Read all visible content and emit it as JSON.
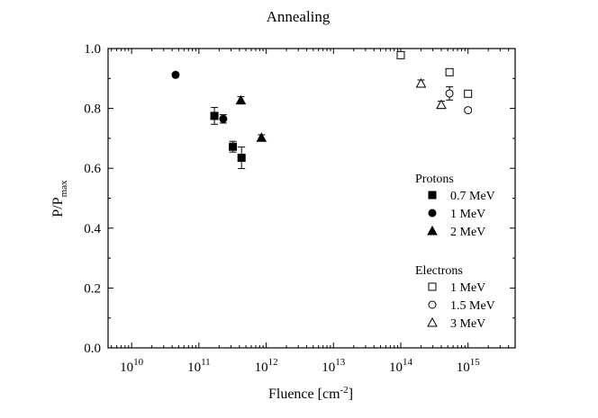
{
  "chart_data": {
    "type": "scatter",
    "title": "Annealing",
    "xlabel": {
      "base": "Fluence [cm",
      "sup": "-2",
      "close": "]"
    },
    "ylabel": {
      "base": "P/P",
      "sub": "max"
    },
    "xscale": "log",
    "xlim_exp": [
      9.65,
      15.7
    ],
    "ylim": [
      0.0,
      1.0
    ],
    "x_ticks": [
      {
        "base": "10",
        "exp": "10",
        "value_exp": 10
      },
      {
        "base": "10",
        "exp": "11",
        "value_exp": 11
      },
      {
        "base": "10",
        "exp": "12",
        "value_exp": 12
      },
      {
        "base": "10",
        "exp": "13",
        "value_exp": 13
      },
      {
        "base": "10",
        "exp": "14",
        "value_exp": 14
      },
      {
        "base": "10",
        "exp": "15",
        "value_exp": 15
      }
    ],
    "y_ticks": [
      {
        "value": 0.0,
        "label": "0.0"
      },
      {
        "value": 0.2,
        "label": "0.2"
      },
      {
        "value": 0.4,
        "label": "0.4"
      },
      {
        "value": 0.6,
        "label": "0.6"
      },
      {
        "value": 0.8,
        "label": "0.8"
      },
      {
        "value": 1.0,
        "label": "1.0"
      }
    ],
    "legend": {
      "placement": "right",
      "groups": [
        {
          "title": "Protons",
          "entries": [
            {
              "label": "0.7 MeV",
              "marker": "square",
              "filled": true
            },
            {
              "label": "1 MeV",
              "marker": "circle",
              "filled": true
            },
            {
              "label": "2 MeV",
              "marker": "triangle",
              "filled": true
            }
          ]
        },
        {
          "title": "Electrons",
          "entries": [
            {
              "label": "1 MeV",
              "marker": "square",
              "filled": false
            },
            {
              "label": "1.5 MeV",
              "marker": "circle",
              "filled": false
            },
            {
              "label": "3 MeV",
              "marker": "triangle",
              "filled": false
            }
          ]
        }
      ]
    },
    "series": [
      {
        "name": "Protons 0.7 MeV",
        "marker": "square",
        "filled": true,
        "points": [
          {
            "x": 170000000000.0,
            "y": 0.775,
            "err": 0.028
          },
          {
            "x": 320000000000.0,
            "y": 0.672,
            "err": 0.018
          },
          {
            "x": 430000000000.0,
            "y": 0.635,
            "err": 0.036
          }
        ]
      },
      {
        "name": "Protons 1 MeV",
        "marker": "circle",
        "filled": true,
        "points": [
          {
            "x": 45000000000.0,
            "y": 0.912,
            "err": 0
          },
          {
            "x": 230000000000.0,
            "y": 0.765,
            "err": 0.014
          }
        ]
      },
      {
        "name": "Protons 2 MeV",
        "marker": "triangle",
        "filled": true,
        "points": [
          {
            "x": 420000000000.0,
            "y": 0.827,
            "err": 0.012
          },
          {
            "x": 850000000000.0,
            "y": 0.702,
            "err": 0.01
          }
        ]
      },
      {
        "name": "Electrons 1 MeV",
        "marker": "square",
        "filled": false,
        "points": [
          {
            "x": 100000000000000.0,
            "y": 0.978,
            "err": 0.008
          },
          {
            "x": 530000000000000.0,
            "y": 0.921,
            "err": 0
          },
          {
            "x": 1000000000000000.0,
            "y": 0.849,
            "err": 0
          }
        ]
      },
      {
        "name": "Electrons 1.5 MeV",
        "marker": "circle",
        "filled": false,
        "points": [
          {
            "x": 530000000000000.0,
            "y": 0.85,
            "err": 0.022
          },
          {
            "x": 1000000000000000.0,
            "y": 0.794,
            "err": 0
          }
        ]
      },
      {
        "name": "Electrons 3 MeV",
        "marker": "triangle",
        "filled": false,
        "points": [
          {
            "x": 200000000000000.0,
            "y": 0.883,
            "err": 0.012
          },
          {
            "x": 400000000000000.0,
            "y": 0.812,
            "err": 0.012
          }
        ]
      }
    ]
  }
}
